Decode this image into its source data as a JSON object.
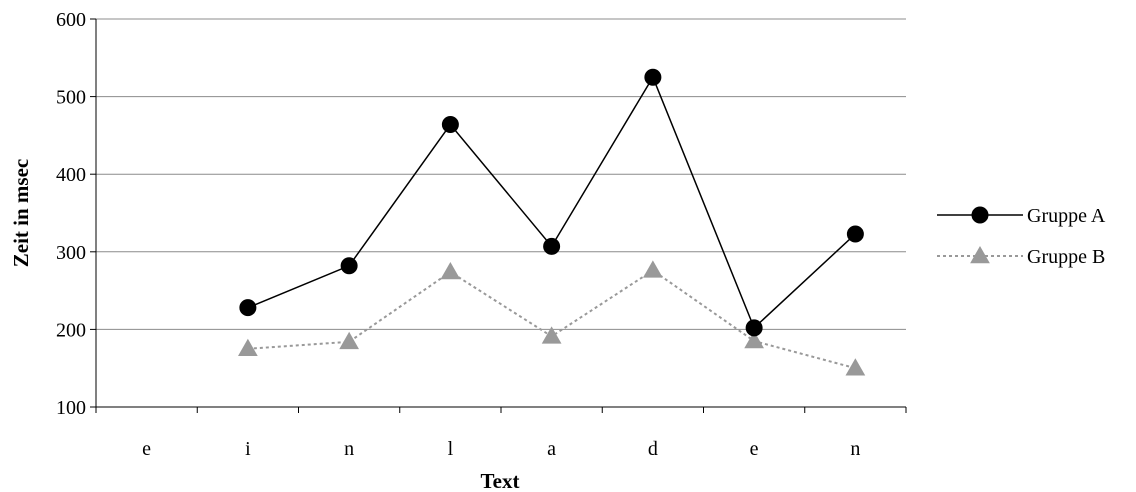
{
  "chart_data": {
    "type": "line",
    "categories": [
      "e",
      "i",
      "n",
      "l",
      "a",
      "d",
      "e",
      "n"
    ],
    "xlabel": "Text",
    "ylabel": "Zeit in msec",
    "ylim": [
      100,
      600
    ],
    "yticks": [
      100,
      200,
      300,
      400,
      500,
      600
    ],
    "grid": true,
    "legend_position": "right",
    "series": [
      {
        "name": "Gruppe A",
        "values": [
          null,
          228,
          282,
          464,
          307,
          525,
          202,
          323
        ],
        "color": "#000000",
        "marker": "circle",
        "line_style": "solid"
      },
      {
        "name": "Gruppe B",
        "values": [
          null,
          175,
          184,
          274,
          191,
          276,
          185,
          150
        ],
        "color": "#999999",
        "marker": "triangle",
        "line_style": "dotted"
      }
    ]
  }
}
